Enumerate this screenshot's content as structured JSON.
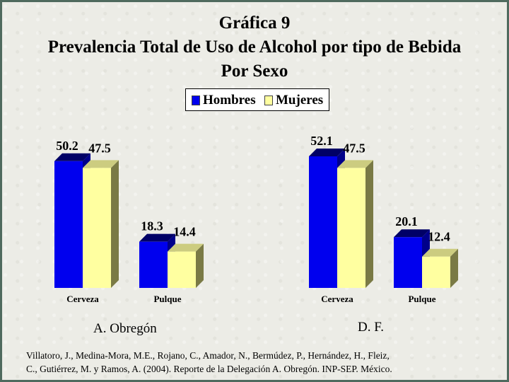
{
  "title_lines": [
    "Gráfica 9",
    "Prevalencia Total de Uso de Alcohol por tipo de Bebida",
    "Por Sexo"
  ],
  "colors": {
    "hombres": "#0000ee",
    "mujeres": "#ffffa0",
    "background": "#ecece6",
    "border": "#4f6a5e"
  },
  "legend": {
    "hombres": "Hombres",
    "mujeres": "Mujeres"
  },
  "source": {
    "line1": "Villatoro, J., Medina-Mora, M.E., Rojano, C., Amador, N., Bermúdez, P., Hernández, H., Fleiz,",
    "line2": "C., Gutiérrez, M. y Ramos, A. (2004). Reporte de la Delegación A. Obregón. INP-SEP. México."
  },
  "chart_data": [
    {
      "type": "bar",
      "title": "A. Obregón",
      "categories": [
        "Cerveza",
        "Pulque"
      ],
      "series": [
        {
          "name": "Hombres",
          "values": [
            50.2,
            18.3
          ]
        },
        {
          "name": "Mujeres",
          "values": [
            47.5,
            14.4
          ]
        }
      ],
      "ylim": [
        0,
        60
      ],
      "grid": false,
      "legend": "top-center"
    },
    {
      "type": "bar",
      "title": "D. F.",
      "categories": [
        "Cerveza",
        "Pulque"
      ],
      "series": [
        {
          "name": "Hombres",
          "values": [
            52.1,
            20.1
          ]
        },
        {
          "name": "Mujeres",
          "values": [
            47.5,
            12.4
          ]
        }
      ],
      "ylim": [
        0,
        60
      ],
      "grid": false,
      "legend": "top-center"
    }
  ]
}
